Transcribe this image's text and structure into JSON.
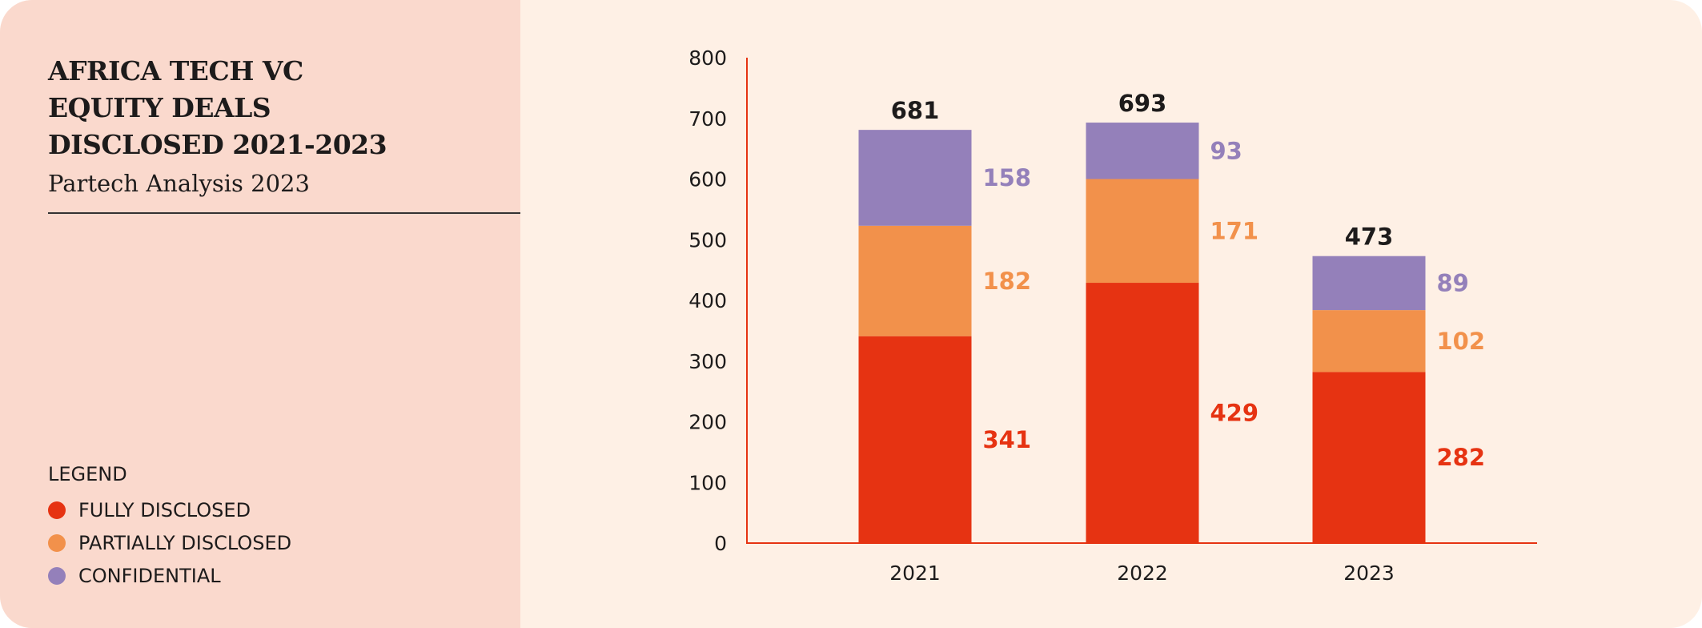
{
  "header": {
    "title_lines": [
      "AFRICA TECH VC",
      "EQUITY DEALS",
      "DISCLOSED 2021-2023"
    ],
    "subtitle": "Partech Analysis 2023"
  },
  "legend": {
    "title": "LEGEND",
    "items": [
      {
        "label": "FULLY DISCLOSED",
        "color": "#E63312"
      },
      {
        "label": "PARTIALLY DISCLOSED",
        "color": "#F2914B"
      },
      {
        "label": "CONFIDENTIAL",
        "color": "#9480BA"
      }
    ]
  },
  "chart_data": {
    "type": "bar",
    "stacked": true,
    "categories": [
      "2021",
      "2022",
      "2023"
    ],
    "series": [
      {
        "name": "FULLY DISCLOSED",
        "color": "#E63312",
        "values": [
          341,
          429,
          282
        ]
      },
      {
        "name": "PARTIALLY DISCLOSED",
        "color": "#F2914B",
        "values": [
          182,
          171,
          102
        ]
      },
      {
        "name": "CONFIDENTIAL",
        "color": "#9480BA",
        "values": [
          158,
          93,
          89
        ]
      }
    ],
    "totals": [
      681,
      693,
      473
    ],
    "ylim": [
      0,
      800
    ],
    "yticks": [
      0,
      100,
      200,
      300,
      400,
      500,
      600,
      700,
      800
    ],
    "grid": false,
    "axis_color": "#E63312",
    "legend_placement": "left"
  }
}
